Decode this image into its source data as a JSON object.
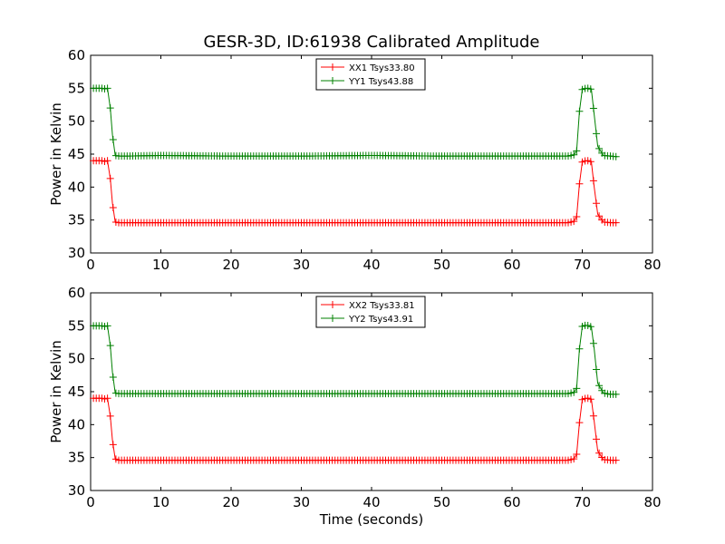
{
  "chart_data": [
    {
      "type": "line",
      "title": "GESR-3D, ID:61938 Calibrated Amplitude",
      "xlabel": "",
      "ylabel": "Power in Kelvin",
      "xlim": [
        0,
        80
      ],
      "ylim": [
        30,
        60
      ],
      "xticks": [
        "0",
        "10",
        "20",
        "30",
        "40",
        "50",
        "60",
        "70",
        "80"
      ],
      "yticks": [
        "30",
        "35",
        "40",
        "45",
        "50",
        "55",
        "60"
      ],
      "legend_position": "top-center",
      "grid": false,
      "series": [
        {
          "name": "XX1 Tsys33.80",
          "color": "#ff0000",
          "marker": "+",
          "x": [
            0.4,
            0.8,
            1.2,
            1.6,
            2.0,
            2.4,
            2.8,
            3.1,
            3.5,
            4.0,
            5.0,
            10.0,
            20.0,
            30.0,
            40.0,
            50.0,
            60.0,
            68.0,
            68.8,
            69.2,
            69.6,
            70.0,
            70.5,
            71.0,
            71.3,
            71.7,
            72.2,
            73.0,
            74.0,
            75.0
          ],
          "values": [
            44.0,
            44.0,
            44.0,
            44.0,
            43.9,
            44.0,
            41.3,
            37.6,
            34.7,
            34.6,
            34.6,
            34.6,
            34.6,
            34.6,
            34.6,
            34.6,
            34.6,
            34.6,
            34.8,
            35.5,
            40.5,
            43.8,
            44.0,
            44.0,
            43.8,
            40.0,
            35.9,
            34.7,
            34.6,
            34.6
          ]
        },
        {
          "name": "YY1 Tsys43.88",
          "color": "#008000",
          "marker": "+",
          "x": [
            0.4,
            0.8,
            1.2,
            1.6,
            2.0,
            2.4,
            2.8,
            3.1,
            3.5,
            4.0,
            5.0,
            10.0,
            20.0,
            30.0,
            40.0,
            50.0,
            60.0,
            68.0,
            68.8,
            69.2,
            69.6,
            70.0,
            70.5,
            71.0,
            71.3,
            71.7,
            72.2,
            73.0,
            74.0,
            75.0
          ],
          "values": [
            55.0,
            55.0,
            55.0,
            55.0,
            54.9,
            55.0,
            52.0,
            48.0,
            44.8,
            44.7,
            44.7,
            44.8,
            44.7,
            44.7,
            44.8,
            44.7,
            44.7,
            44.7,
            44.9,
            45.5,
            51.5,
            54.8,
            55.0,
            55.0,
            54.8,
            51.0,
            46.2,
            44.8,
            44.7,
            44.6
          ]
        }
      ]
    },
    {
      "type": "line",
      "title": "",
      "xlabel": "Time (seconds)",
      "ylabel": "Power in Kelvin",
      "xlim": [
        0,
        80
      ],
      "ylim": [
        30,
        60
      ],
      "xticks": [
        "0",
        "10",
        "20",
        "30",
        "40",
        "50",
        "60",
        "70",
        "80"
      ],
      "yticks": [
        "30",
        "35",
        "40",
        "45",
        "50",
        "55",
        "60"
      ],
      "legend_position": "top-center",
      "grid": false,
      "series": [
        {
          "name": "XX2 Tsys33.81",
          "color": "#ff0000",
          "marker": "+",
          "x": [
            0.4,
            0.8,
            1.2,
            1.6,
            2.0,
            2.4,
            2.8,
            3.1,
            3.5,
            4.0,
            5.0,
            10.0,
            20.0,
            30.0,
            40.0,
            50.0,
            60.0,
            68.0,
            68.8,
            69.2,
            69.6,
            70.0,
            70.5,
            71.0,
            71.3,
            71.7,
            72.2,
            73.0,
            74.0,
            75.0
          ],
          "values": [
            44.0,
            44.0,
            44.0,
            44.0,
            43.9,
            44.0,
            41.3,
            37.7,
            34.8,
            34.6,
            34.6,
            34.6,
            34.6,
            34.6,
            34.6,
            34.6,
            34.6,
            34.6,
            34.8,
            35.5,
            40.3,
            43.8,
            44.0,
            44.0,
            43.8,
            40.5,
            36.0,
            34.7,
            34.6,
            34.6
          ]
        },
        {
          "name": "YY2 Tsys43.91",
          "color": "#008000",
          "marker": "+",
          "x": [
            0.4,
            0.8,
            1.2,
            1.6,
            2.0,
            2.4,
            2.8,
            3.1,
            3.5,
            4.0,
            5.0,
            10.0,
            20.0,
            30.0,
            40.0,
            50.0,
            60.0,
            68.0,
            68.8,
            69.2,
            69.6,
            70.0,
            70.5,
            71.0,
            71.3,
            71.7,
            72.2,
            73.0,
            74.0,
            75.0
          ],
          "values": [
            55.0,
            55.0,
            55.0,
            55.0,
            54.9,
            55.0,
            52.0,
            48.0,
            44.8,
            44.7,
            44.7,
            44.7,
            44.7,
            44.7,
            44.7,
            44.7,
            44.7,
            44.7,
            44.9,
            45.5,
            51.5,
            54.9,
            55.1,
            55.0,
            54.8,
            51.5,
            46.3,
            44.8,
            44.6,
            44.6
          ]
        }
      ]
    }
  ]
}
